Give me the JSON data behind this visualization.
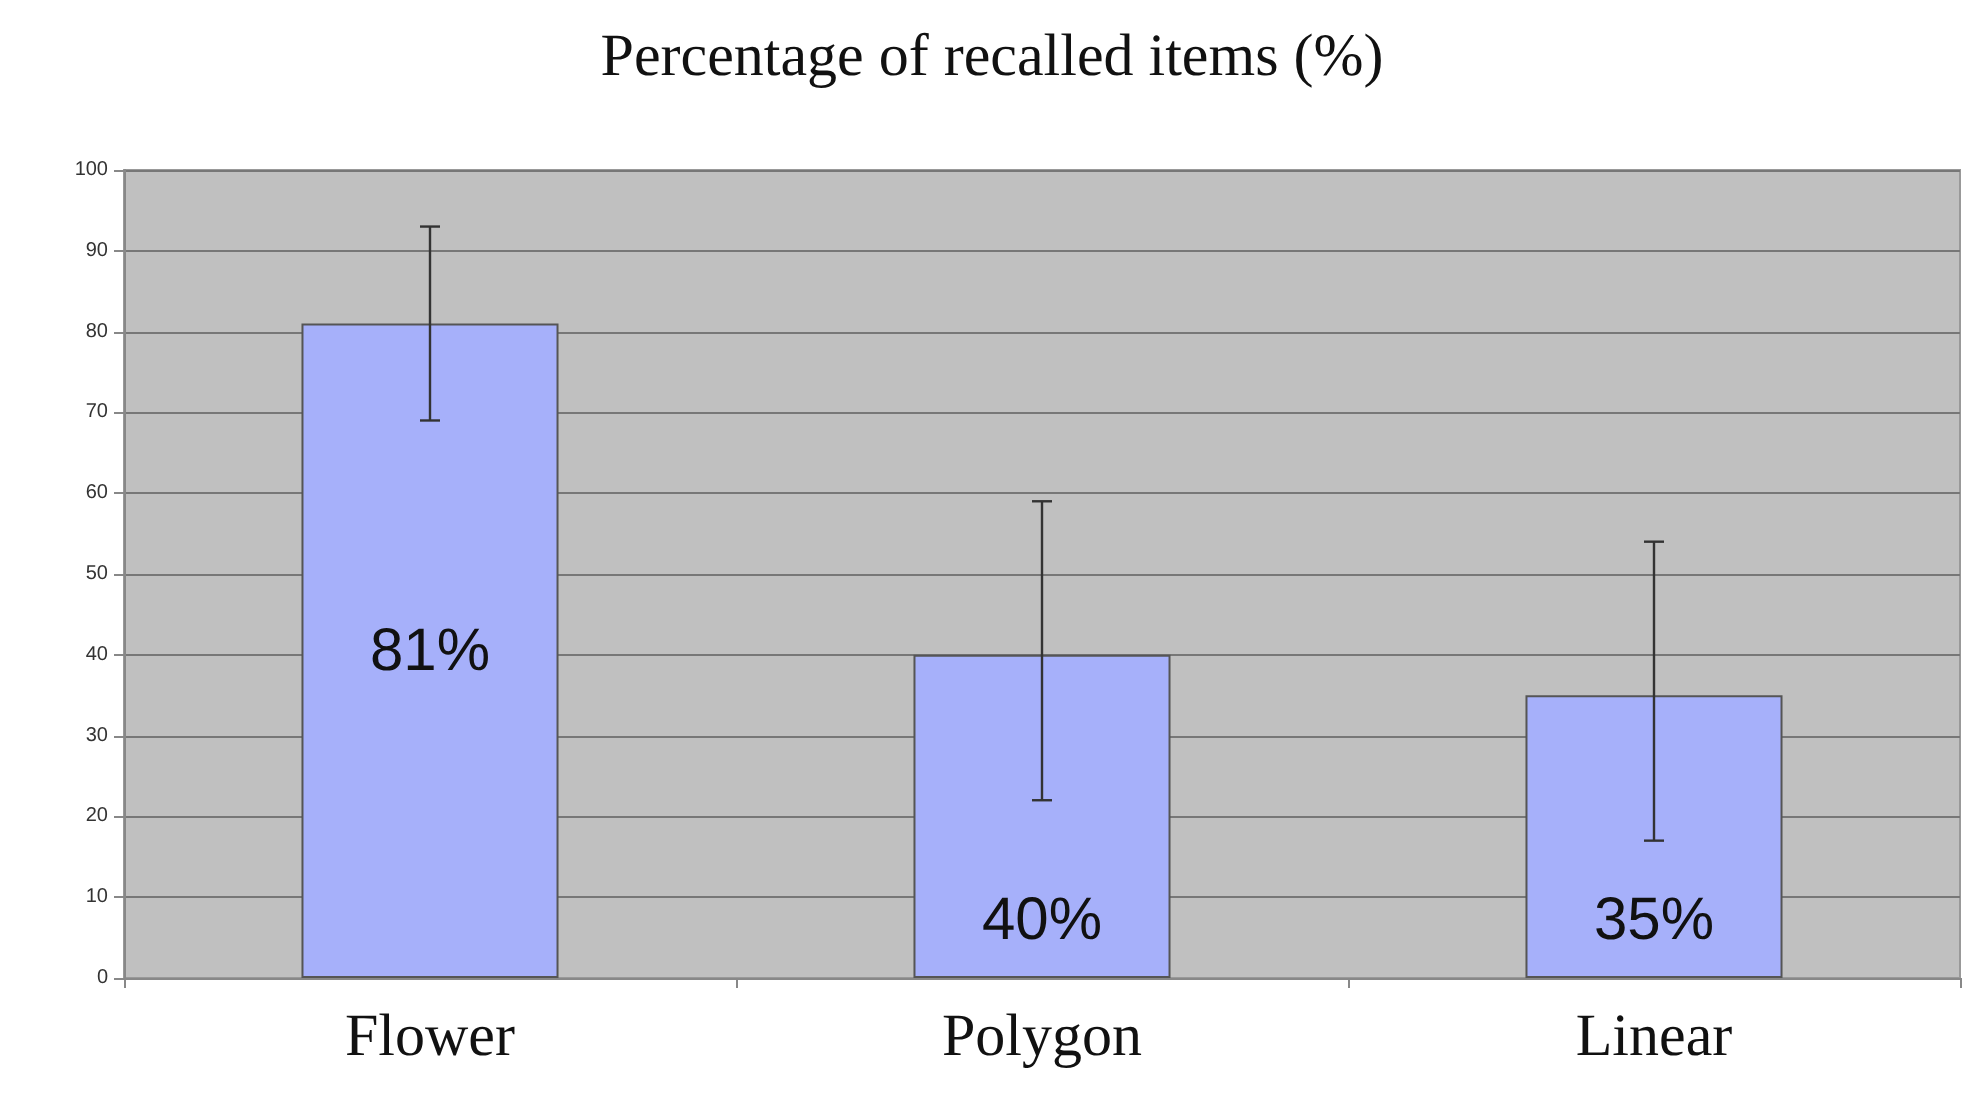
{
  "chart_data": {
    "type": "bar",
    "title": "Percentage of recalled items (%)",
    "categories": [
      "Flower",
      "Polygon",
      "Linear"
    ],
    "values": [
      81,
      40,
      35
    ],
    "value_labels": [
      "81%",
      "40%",
      "35%"
    ],
    "errors": [
      [
        69,
        93
      ],
      [
        22,
        59
      ],
      [
        17,
        54
      ]
    ],
    "color": "#a6b0fa",
    "ylim": [
      0,
      100
    ],
    "yticks": [
      0,
      10,
      20,
      30,
      40,
      50,
      60,
      70,
      80,
      90,
      100
    ],
    "grid": "y"
  }
}
